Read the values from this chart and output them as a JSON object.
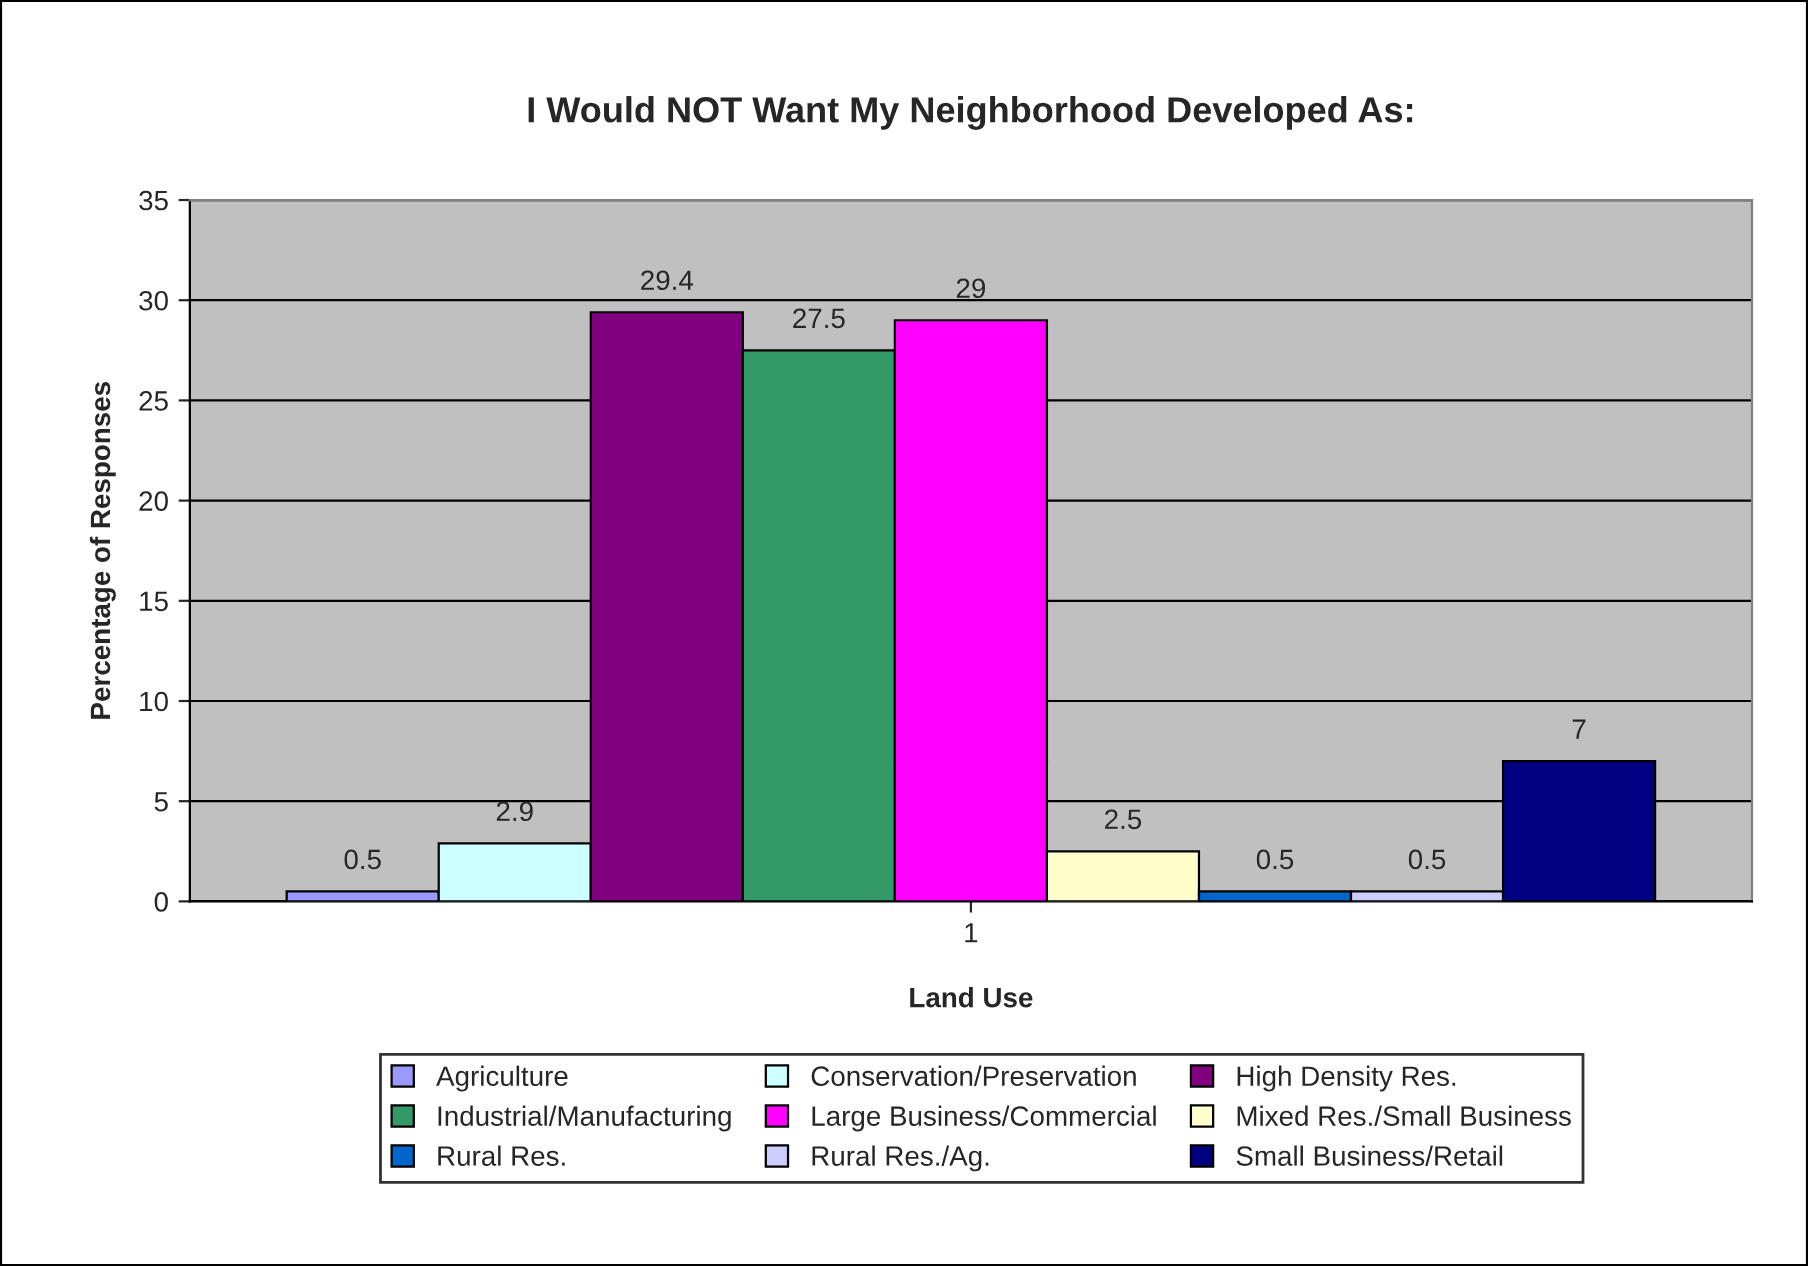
{
  "chart_data": {
    "type": "bar",
    "title": "I Would NOT Want My Neighborhood Developed As:",
    "xlabel": "Land Use",
    "ylabel": "Percentage of Responses",
    "categories": [
      "1"
    ],
    "series": [
      {
        "name": "Agriculture",
        "color": "#9999ff",
        "values": [
          0.5
        ]
      },
      {
        "name": "Conservation/Preservation",
        "color": "#ccffff",
        "values": [
          2.9
        ]
      },
      {
        "name": "High Density Res.",
        "color": "#800080",
        "values": [
          29.4
        ]
      },
      {
        "name": "Industrial/Manufacturing",
        "color": "#339966",
        "values": [
          27.5
        ]
      },
      {
        "name": "Large Business/Commercial",
        "color": "#ff00ff",
        "values": [
          29
        ]
      },
      {
        "name": "Mixed Res./Small Business",
        "color": "#ffffcc",
        "values": [
          2.5
        ]
      },
      {
        "name": "Rural Res.",
        "color": "#0066cc",
        "values": [
          0.5
        ]
      },
      {
        "name": "Rural Res./Ag.",
        "color": "#ccccff",
        "values": [
          0.5
        ]
      },
      {
        "name": "Small Business/Retail",
        "color": "#000080",
        "values": [
          7
        ]
      }
    ],
    "ylim": [
      0,
      35
    ],
    "yticks": [
      0,
      5,
      10,
      15,
      20,
      25,
      30,
      35
    ],
    "grid": "y",
    "legend": "bottom",
    "data_labels": true
  }
}
